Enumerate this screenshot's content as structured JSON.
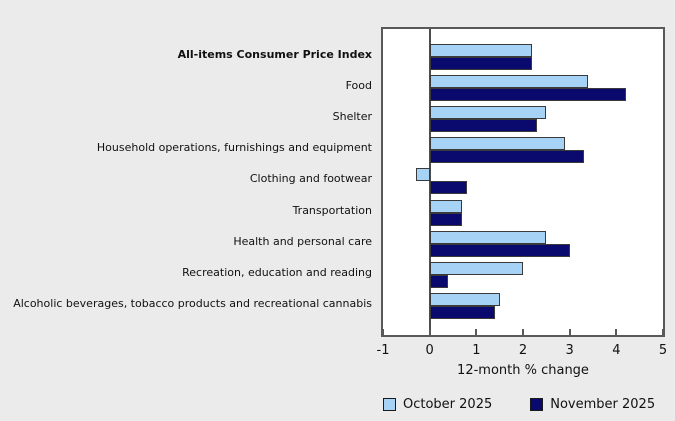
{
  "chart_data": {
    "type": "bar",
    "orientation": "horizontal",
    "title": "",
    "xlabel": "12-month % change",
    "xlim": [
      -1,
      5
    ],
    "xticks": [
      -1,
      0,
      1,
      2,
      3,
      4,
      5
    ],
    "grid": false,
    "legend_position": "bottom",
    "emphasized_category_index": 0,
    "categories": [
      "All-items Consumer Price Index",
      "Food",
      "Shelter",
      "Household operations, furnishings and equipment",
      "Clothing and footwear",
      "Transportation",
      "Health and personal care",
      "Recreation, education and reading",
      "Alcoholic beverages, tobacco products and recreational cannabis"
    ],
    "series": [
      {
        "name": "October 2025",
        "color": "#A6D2F5",
        "values": [
          2.2,
          3.4,
          2.5,
          2.9,
          -0.3,
          0.7,
          2.5,
          2.0,
          1.5
        ]
      },
      {
        "name": "November 2025",
        "color": "#0A0A6E",
        "values": [
          2.2,
          4.2,
          2.3,
          3.3,
          0.8,
          0.7,
          3.0,
          0.4,
          1.4
        ]
      }
    ]
  },
  "colors": {
    "background": "#EBEBEB",
    "plot_background": "#FFFFFF",
    "plot_border": "#595959",
    "bar_border": "#3A3A3A",
    "zero_line": "#4D4D4D",
    "text": "#111111"
  }
}
